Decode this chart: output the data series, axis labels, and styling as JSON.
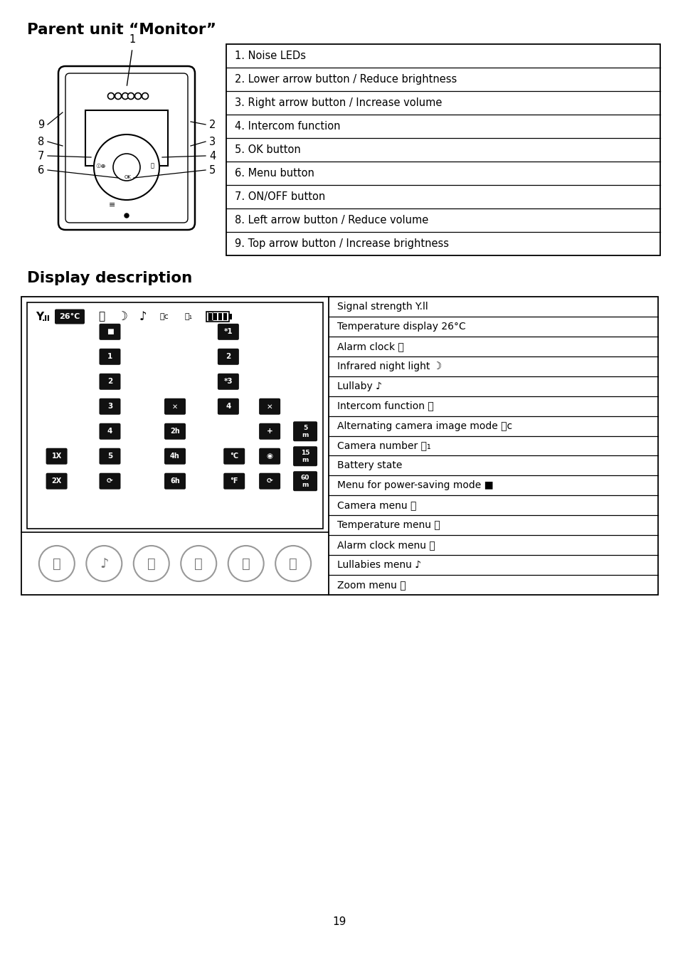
{
  "bg_color": "#ffffff",
  "title1": "Parent unit “Monitor”",
  "title2": "Display description",
  "monitor_items": [
    "1. Noise LEDs",
    "2. Lower arrow button / Reduce brightness",
    "3. Right arrow button / Increase volume",
    "4. Intercom function",
    "5. OK button",
    "6. Menu button",
    "7. ON/OFF button",
    "8. Left arrow button / Reduce volume",
    "9. Top arrow button / Increase brightness"
  ],
  "display_right_items": [
    "Signal strength Y.ll",
    "Temperature display 26°C",
    "Alarm clock",
    "Infrared night light",
    "Lullaby ♪",
    "Intercom function",
    "Alternating camera image mode",
    "Camera number",
    "Battery state",
    "Menu for power-saving mode",
    "Camera menu",
    "Temperature menu",
    "Alarm clock menu",
    "Lullabies menu ♪",
    "Zoom menu"
  ],
  "page_number": "19"
}
